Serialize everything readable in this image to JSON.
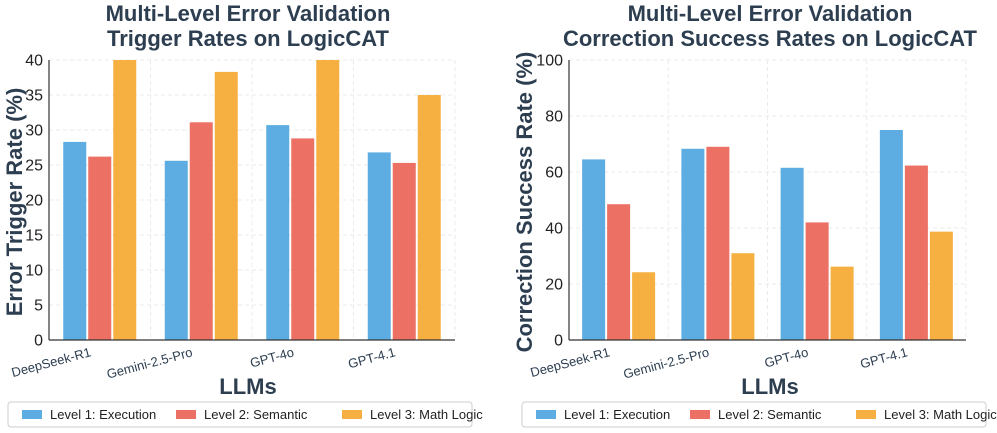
{
  "chart_data": [
    {
      "type": "bar",
      "title": [
        "Multi-Level Error Validation",
        "Trigger Rates on LogicCAT"
      ],
      "xlabel": "LLMs",
      "ylabel": "Error Trigger Rate (%)",
      "ylim": [
        0,
        40
      ],
      "yticks": [
        0,
        5,
        10,
        15,
        20,
        25,
        30,
        35,
        40
      ],
      "categories": [
        "DeepSeek-R1",
        "Gemini-2.5-Pro",
        "GPT-4o",
        "GPT-4.1"
      ],
      "series": [
        {
          "name": "Level 1: Execution",
          "values": [
            28.3,
            25.6,
            30.7,
            26.8
          ]
        },
        {
          "name": "Level 2: Semantic",
          "values": [
            26.2,
            31.1,
            28.8,
            25.3
          ]
        },
        {
          "name": "Level 3: Math Logic",
          "values": [
            40.0,
            38.3,
            40.0,
            35.0
          ]
        }
      ],
      "grid": true,
      "legend": "bottom"
    },
    {
      "type": "bar",
      "title": [
        "Multi-Level Error Validation",
        "Correction Success Rates on LogicCAT"
      ],
      "xlabel": "LLMs",
      "ylabel": "Correction Success Rate (%)",
      "ylim": [
        0,
        100
      ],
      "yticks": [
        0,
        20,
        40,
        60,
        80,
        100
      ],
      "categories": [
        "DeepSeek-R1",
        "Gemini-2.5-Pro",
        "GPT-4o",
        "GPT-4.1"
      ],
      "series": [
        {
          "name": "Level 1: Execution",
          "values": [
            64.5,
            68.3,
            61.5,
            75.0
          ]
        },
        {
          "name": "Level 2: Semantic",
          "values": [
            48.5,
            69.0,
            42.0,
            62.3
          ]
        },
        {
          "name": "Level 3: Math Logic",
          "values": [
            24.2,
            31.0,
            26.2,
            38.7
          ]
        }
      ],
      "grid": true,
      "legend": "bottom"
    }
  ],
  "colors": {
    "series": [
      "#5dade2",
      "#ec7063",
      "#f5b041"
    ],
    "text": "#2c3e50"
  }
}
